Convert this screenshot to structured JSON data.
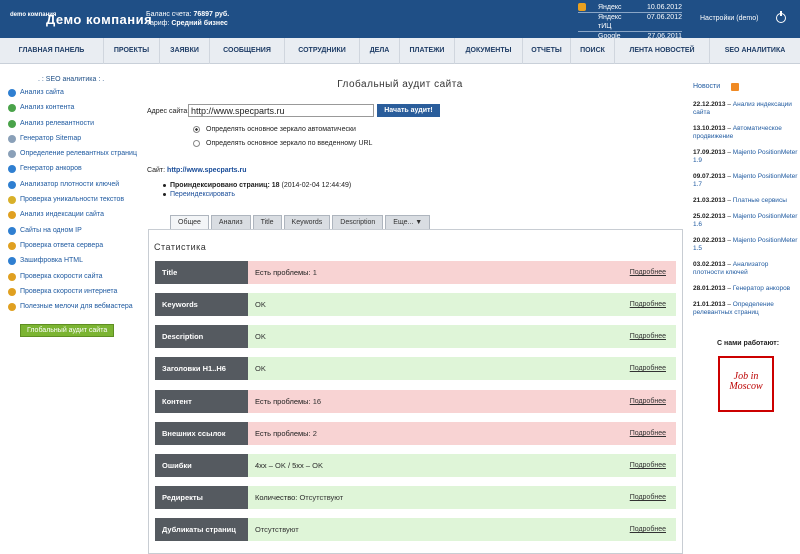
{
  "header": {
    "logo_small": "demo компания",
    "logo": "Демо компания",
    "balance_label": "Баланс счета:",
    "balance_value": "76897 руб.",
    "tariff_label": "Тариф:",
    "tariff_value": "Средний бизнес",
    "stats": [
      {
        "label": "Яндекс",
        "value": "10.06.2012"
      },
      {
        "label": "Яндекс тИЦ",
        "value": "07.06.2012"
      },
      {
        "label": "Google PR",
        "value": "27.06.2011"
      }
    ],
    "settings": "Настройки (demo)"
  },
  "nav": [
    "ГЛАВНАЯ ПАНЕЛЬ",
    "ПРОЕКТЫ",
    "ЗАЯВКИ",
    "СООБЩЕНИЯ",
    "СОТРУДНИКИ",
    "ДЕЛА",
    "ПЛАТЕЖИ",
    "ДОКУМЕНТЫ",
    "ОТЧЕТЫ",
    "ПОИСК",
    "ЛЕНТА НОВОСТЕЙ",
    "SEO АНАЛИТИКА"
  ],
  "sidebar": {
    "title": ". : SEO аналитика : .",
    "items": [
      {
        "label": "Анализ сайта",
        "color": "#2f7fd1"
      },
      {
        "label": "Анализ контента",
        "color": "#4aa34a"
      },
      {
        "label": "Анализ релевантности",
        "color": "#4aa34a"
      },
      {
        "label": "Генератор Sitemap",
        "color": "#8aa0b8"
      },
      {
        "label": "Определение релевантных страниц",
        "color": "#8aa0b8"
      },
      {
        "label": "Генератор анкоров",
        "color": "#2f7fd1"
      },
      {
        "label": "Анализатор плотности ключей",
        "color": "#2f7fd1"
      },
      {
        "label": "Проверка уникальности текстов",
        "color": "#d8b02a"
      },
      {
        "label": "Анализ индексации сайта",
        "color": "#e0a020"
      },
      {
        "label": "Сайты на одном IP",
        "color": "#2f7fd1"
      },
      {
        "label": "Проверка ответа сервера",
        "color": "#e0a020"
      },
      {
        "label": "Зашифровка HTML",
        "color": "#2f7fd1"
      },
      {
        "label": "Проверка скорости сайта",
        "color": "#e0a020"
      },
      {
        "label": "Проверка скорости интернета",
        "color": "#e0a020"
      },
      {
        "label": "Полезные мелочи для вебмастера",
        "color": "#e0a020"
      }
    ],
    "button": "Глобальный аудит сайта"
  },
  "main": {
    "title": "Глобальный аудит сайта",
    "url_label": "Адрес сайта:",
    "url_value": "http://www.specparts.ru",
    "audit_button": "Начать аудит!",
    "radio1": "Определять основное зеркало автоматически",
    "radio2": "Определять основное зеркало по введенному URL",
    "site_label": "Сайт:",
    "site_link": "http://www.specparts.ru",
    "indexed_label": "Проиндексировано страниц:",
    "indexed_value": "18",
    "indexed_date": "(2014-02-04 12:44:49)",
    "reindex": "Переиндексировать"
  },
  "tabs": [
    "Общее",
    "Анализ",
    "Title",
    "Keywords",
    "Description",
    "Еще... ▼"
  ],
  "stats": {
    "title": "Статистика",
    "more": "Подробнее",
    "rows": [
      {
        "key": "Title",
        "status": "bad",
        "text": "Есть проблемы:",
        "link": "1"
      },
      {
        "key": "Keywords",
        "status": "ok",
        "text": "",
        "link": "OK"
      },
      {
        "key": "Description",
        "status": "ok",
        "text": "",
        "link": "OK"
      },
      {
        "key": "Заголовки H1..H6",
        "status": "ok",
        "text": "",
        "link": "OK"
      },
      {
        "key": "Контент",
        "status": "bad",
        "text": "Есть проблемы:",
        "link": "16"
      },
      {
        "key": "Внешних ссылок",
        "status": "bad",
        "text": "Есть проблемы:",
        "link": "2"
      },
      {
        "key": "Ошибки",
        "status": "ok",
        "text": "4xx – ",
        "link": "OK",
        "text2": " / 5xx – ",
        "link2": "OK"
      },
      {
        "key": "Редиректы",
        "status": "ok",
        "text": "Количество:",
        "link": "Отсутствуют"
      },
      {
        "key": "Дубликаты страниц",
        "status": "ok",
        "text": "",
        "link": "Отсутствуют"
      }
    ]
  },
  "news": {
    "title": "Новости",
    "items": [
      {
        "date": "22.12.2013",
        "text": "Анализ индексации сайта"
      },
      {
        "date": "13.10.2013",
        "text": "Автоматическое продвижение"
      },
      {
        "date": "17.09.2013",
        "text": "Majento PositionMeter 1.9"
      },
      {
        "date": "09.07.2013",
        "text": "Majento PositionMeter 1.7"
      },
      {
        "date": "21.03.2013",
        "text": "Платные сервисы"
      },
      {
        "date": "25.02.2013",
        "text": "Majento PositionMeter 1.6"
      },
      {
        "date": "20.02.2013",
        "text": "Majento PositionMeter 1.5"
      },
      {
        "date": "03.02.2013",
        "text": "Анализатор плотности ключей"
      },
      {
        "date": "28.01.2013",
        "text": "Генератор анкоров"
      },
      {
        "date": "21.01.2013",
        "text": "Определение релевантных страниц"
      }
    ],
    "partners_label": "С нами работают:",
    "partner_logo": "Job in Moscow"
  }
}
